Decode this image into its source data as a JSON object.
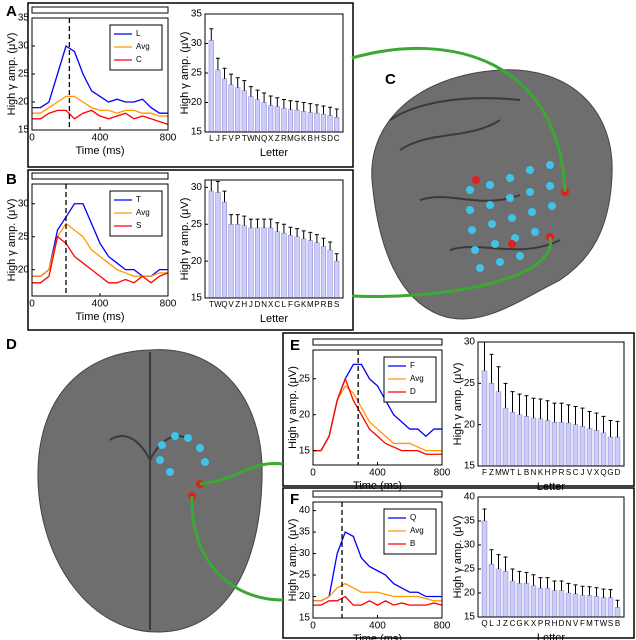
{
  "brain_labels": [
    "C",
    "D"
  ],
  "chart_data": [
    {
      "type": "line",
      "label": "A",
      "xlabel": "Time (ms)",
      "ylabel": "High γ amp. (μV)",
      "x": [
        0,
        50,
        100,
        150,
        200,
        250,
        300,
        350,
        400,
        450,
        500,
        550,
        600,
        650,
        700,
        750,
        800
      ],
      "series": [
        {
          "name": "L",
          "color": "#0000ff",
          "values": [
            19,
            19,
            20,
            25,
            30,
            29,
            25,
            22,
            21,
            20,
            20.5,
            20,
            20,
            20.5,
            19,
            18,
            18
          ]
        },
        {
          "name": "Avg",
          "color": "#ff9900",
          "values": [
            18,
            18,
            19,
            20,
            21,
            21,
            20,
            19,
            18.5,
            18.5,
            18,
            18.5,
            18.5,
            18,
            18,
            17.5,
            17.5
          ]
        },
        {
          "name": "C",
          "color": "#ff0000",
          "values": [
            17,
            17,
            18,
            18.5,
            18.5,
            17,
            18,
            18.5,
            17.5,
            17,
            17.5,
            18,
            17,
            17.5,
            17,
            16.5,
            16
          ]
        }
      ],
      "marker_x": 220,
      "xlim": [
        0,
        800
      ],
      "xticks": [
        0,
        400,
        800
      ],
      "ylim": [
        15,
        35
      ],
      "yticks": [
        15,
        20,
        25,
        30,
        35
      ]
    },
    {
      "type": "bar",
      "xlabel": "Letter",
      "ylabel": "High γ amp. (μV)",
      "categories": [
        "L",
        "J",
        "F",
        "V",
        "P",
        "T",
        "W",
        "N",
        "Q",
        "X",
        "Z",
        "R",
        "M",
        "G",
        "K",
        "B",
        "H",
        "S",
        "D",
        "C"
      ],
      "values": [
        30.5,
        25.5,
        24,
        23,
        22.5,
        22,
        21,
        20.5,
        20,
        19.5,
        19.3,
        19,
        18.8,
        18.7,
        18.5,
        18.3,
        18.2,
        18,
        17.8,
        17.5
      ],
      "errors": [
        2,
        2,
        1.8,
        1.8,
        1.7,
        1.7,
        1.7,
        1.6,
        1.6,
        1.6,
        1.5,
        1.5,
        1.5,
        1.5,
        1.5,
        1.5,
        1.4,
        1.4,
        1.4,
        1.4
      ],
      "color": "#ccccff",
      "ylim": [
        15,
        35
      ],
      "yticks": [
        15,
        20,
        25,
        30,
        35
      ]
    },
    {
      "type": "line",
      "label": "B",
      "xlabel": "Time (ms)",
      "ylabel": "High γ amp. (μV)",
      "x": [
        0,
        50,
        100,
        150,
        200,
        250,
        300,
        350,
        400,
        450,
        500,
        550,
        600,
        650,
        700,
        750,
        800
      ],
      "series": [
        {
          "name": "T",
          "color": "#0000ff",
          "values": [
            19,
            19,
            20,
            26,
            28,
            30,
            30,
            27,
            24,
            22,
            21,
            20,
            20,
            19,
            19,
            20,
            20
          ]
        },
        {
          "name": "Avg",
          "color": "#ff9900",
          "values": [
            19,
            19,
            20,
            25,
            27,
            26,
            25,
            23,
            22,
            21,
            20,
            19.5,
            19,
            19,
            19,
            19.5,
            19.5
          ]
        },
        {
          "name": "S",
          "color": "#ff0000",
          "values": [
            18,
            18,
            19,
            25,
            24,
            22,
            21,
            20,
            19,
            18,
            18,
            18.5,
            18,
            19,
            18,
            19,
            19.5
          ]
        }
      ],
      "marker_x": 200,
      "xlim": [
        0,
        800
      ],
      "xticks": [
        0,
        400,
        800
      ],
      "ylim": [
        16,
        33
      ],
      "yticks": [
        20,
        25,
        30
      ]
    },
    {
      "type": "bar",
      "xlabel": "Letter",
      "ylabel": "High γ amp. (μV)",
      "categories": [
        "T",
        "W",
        "Q",
        "V",
        "Z",
        "H",
        "J",
        "D",
        "N",
        "X",
        "C",
        "L",
        "F",
        "G",
        "K",
        "M",
        "P",
        "R",
        "B",
        "S"
      ],
      "values": [
        29.5,
        29.3,
        28,
        25,
        25,
        24.8,
        24.5,
        24.5,
        24.5,
        24.5,
        24,
        23.8,
        23.5,
        23.3,
        23,
        22.8,
        22.5,
        22,
        21.5,
        20
      ],
      "errors": [
        1.5,
        1.5,
        1.5,
        1.3,
        1.3,
        1.3,
        1.2,
        1.2,
        1.2,
        1.2,
        1.2,
        1.2,
        1.1,
        1.1,
        1.1,
        1.1,
        1.1,
        1.1,
        1.1,
        1
      ],
      "color": "#ccccff",
      "ylim": [
        15,
        31
      ],
      "yticks": [
        15,
        20,
        25,
        30
      ]
    },
    {
      "type": "line",
      "label": "E",
      "xlabel": "Time (ms)",
      "ylabel": "High γ amp. (μV)",
      "x": [
        0,
        50,
        100,
        150,
        200,
        250,
        300,
        350,
        400,
        450,
        500,
        550,
        600,
        650,
        700,
        750,
        800
      ],
      "series": [
        {
          "name": "F",
          "color": "#0000ff",
          "values": [
            15,
            15,
            17,
            22,
            25,
            27,
            27,
            25,
            24,
            22,
            20,
            19,
            18,
            18,
            17,
            18,
            18
          ]
        },
        {
          "name": "Avg",
          "color": "#ff9900",
          "values": [
            15,
            15,
            17,
            22,
            24,
            23,
            21,
            19,
            18,
            17,
            16,
            16,
            16,
            15.5,
            15,
            15,
            15
          ]
        },
        {
          "name": "D",
          "color": "#ff0000",
          "values": [
            15,
            15,
            17,
            22,
            25,
            22,
            20,
            18,
            17,
            16,
            15.5,
            15,
            15,
            15,
            14.5,
            14.5,
            14.5
          ]
        }
      ],
      "marker_x": 280,
      "xlim": [
        0,
        800
      ],
      "xticks": [
        0,
        400,
        800
      ],
      "ylim": [
        13,
        29
      ],
      "yticks": [
        15,
        20,
        25
      ]
    },
    {
      "type": "bar",
      "xlabel": "Letter",
      "ylabel": "High γ amp. (μV)",
      "categories": [
        "F",
        "Z",
        "M",
        "W",
        "T",
        "L",
        "B",
        "N",
        "K",
        "H",
        "P",
        "R",
        "S",
        "C",
        "J",
        "V",
        "X",
        "Q",
        "G",
        "D"
      ],
      "values": [
        26.5,
        25,
        24,
        22,
        21.5,
        21.2,
        21,
        20.8,
        20.7,
        20.5,
        20.3,
        20.3,
        20.2,
        20,
        19.8,
        19.5,
        19.3,
        19,
        18.5,
        18.5
      ],
      "errors": [
        3.5,
        3.5,
        3,
        3,
        2.5,
        2.5,
        2.5,
        2.4,
        2.4,
        2.4,
        2.3,
        2.3,
        2.2,
        2.2,
        2.2,
        2.1,
        2.1,
        2,
        2,
        1.9
      ],
      "color": "#ccccff",
      "ylim": [
        15,
        30
      ],
      "yticks": [
        15,
        20,
        25,
        30
      ]
    },
    {
      "type": "line",
      "label": "F",
      "xlabel": "Time (ms)",
      "ylabel": "High γ amp. (μV)",
      "x": [
        0,
        50,
        100,
        150,
        200,
        250,
        300,
        350,
        400,
        450,
        500,
        550,
        600,
        650,
        700,
        750,
        800
      ],
      "series": [
        {
          "name": "Q",
          "color": "#0000ff",
          "values": [
            19,
            19,
            20,
            30,
            35,
            34,
            29,
            27,
            26,
            25,
            23,
            22,
            21,
            21,
            20,
            20,
            20
          ]
        },
        {
          "name": "Avg",
          "color": "#ff9900",
          "values": [
            19,
            19,
            20,
            22,
            23,
            22,
            21,
            21,
            21,
            20.5,
            20,
            20,
            20,
            20,
            19.5,
            19,
            19
          ]
        },
        {
          "name": "B",
          "color": "#ff0000",
          "values": [
            18,
            18,
            19,
            19,
            20,
            18,
            18,
            19,
            18,
            19,
            18,
            18.5,
            18,
            18,
            18,
            18.5,
            18
          ]
        }
      ],
      "marker_x": 180,
      "xlim": [
        0,
        800
      ],
      "xticks": [
        0,
        400,
        800
      ],
      "ylim": [
        15,
        42
      ],
      "yticks": [
        15,
        20,
        25,
        30,
        35,
        40
      ]
    },
    {
      "type": "bar",
      "xlabel": "Letter",
      "ylabel": "High γ amp. (μV)",
      "categories": [
        "Q",
        "L",
        "J",
        "Z",
        "C",
        "G",
        "K",
        "X",
        "P",
        "R",
        "H",
        "D",
        "N",
        "V",
        "F",
        "M",
        "T",
        "W",
        "S",
        "B"
      ],
      "values": [
        35,
        26,
        25,
        24.5,
        22.5,
        22,
        22,
        21.5,
        21,
        21,
        20.5,
        20.5,
        20,
        19.8,
        19.5,
        19.5,
        19.3,
        19,
        19,
        17
      ],
      "errors": [
        2.5,
        3,
        3,
        3,
        2.5,
        2.5,
        2.3,
        2.3,
        2.2,
        2.2,
        2,
        2,
        2,
        1.9,
        1.9,
        1.8,
        1.8,
        1.8,
        1.7,
        1.5
      ],
      "color": "#ccccff",
      "ylim": [
        15,
        40
      ],
      "yticks": [
        15,
        20,
        25,
        30,
        35,
        40
      ]
    }
  ]
}
